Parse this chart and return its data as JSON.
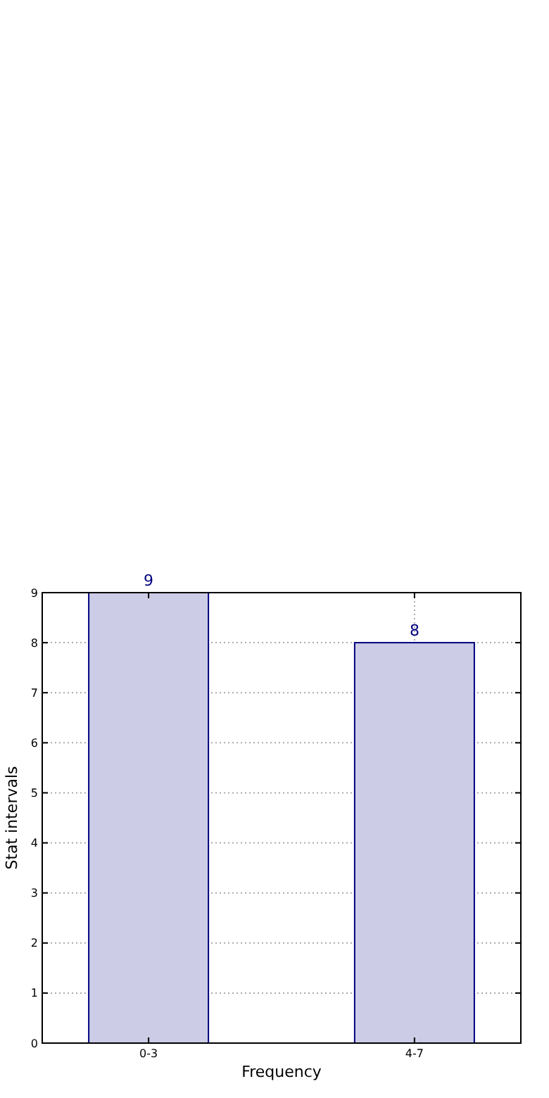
{
  "chart_data": {
    "type": "bar",
    "xlabel": "Frequency",
    "ylabel": "Stat intervals",
    "categories": [
      "0-3",
      "4-7"
    ],
    "series": [
      {
        "color": "#ccccE6",
        "values": [
          9,
          8
        ]
      }
    ],
    "ylim": [
      0,
      9
    ],
    "yticks": [
      0,
      1,
      2,
      3,
      4,
      5,
      6,
      7,
      8,
      9
    ],
    "grid": true,
    "data_labels": true
  }
}
